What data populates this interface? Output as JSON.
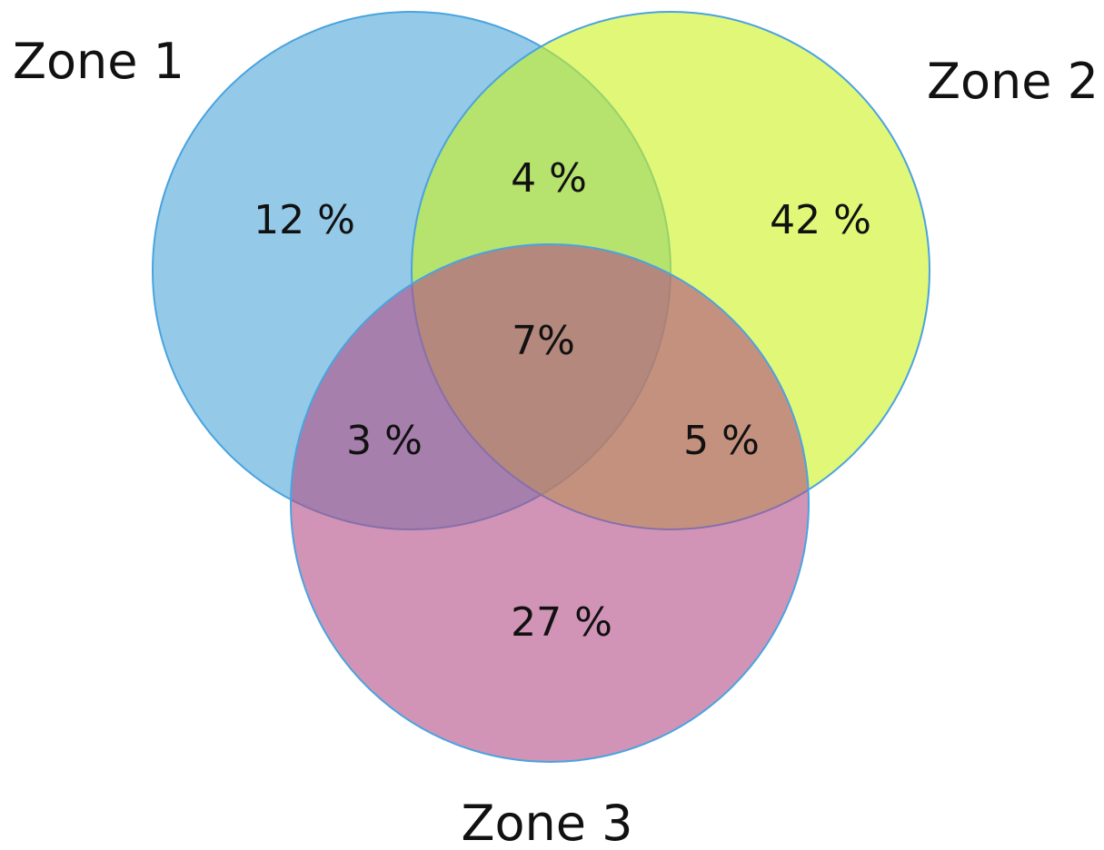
{
  "zones": [
    {
      "label": "Zone 1",
      "color": "#4da6d9"
    },
    {
      "label": "Zone 2",
      "color": "#cdf21c"
    },
    {
      "label": "Zone 3",
      "color": "#b34d86"
    }
  ],
  "regions": {
    "only_zone1": "12 %",
    "only_zone2": "42 %",
    "only_zone3": "27 %",
    "zone1_zone2": "4 %",
    "zone1_zone3": "3 %",
    "zone2_zone3": "5 %",
    "all_zones": "7%"
  },
  "stroke_color": "#4aa3df"
}
